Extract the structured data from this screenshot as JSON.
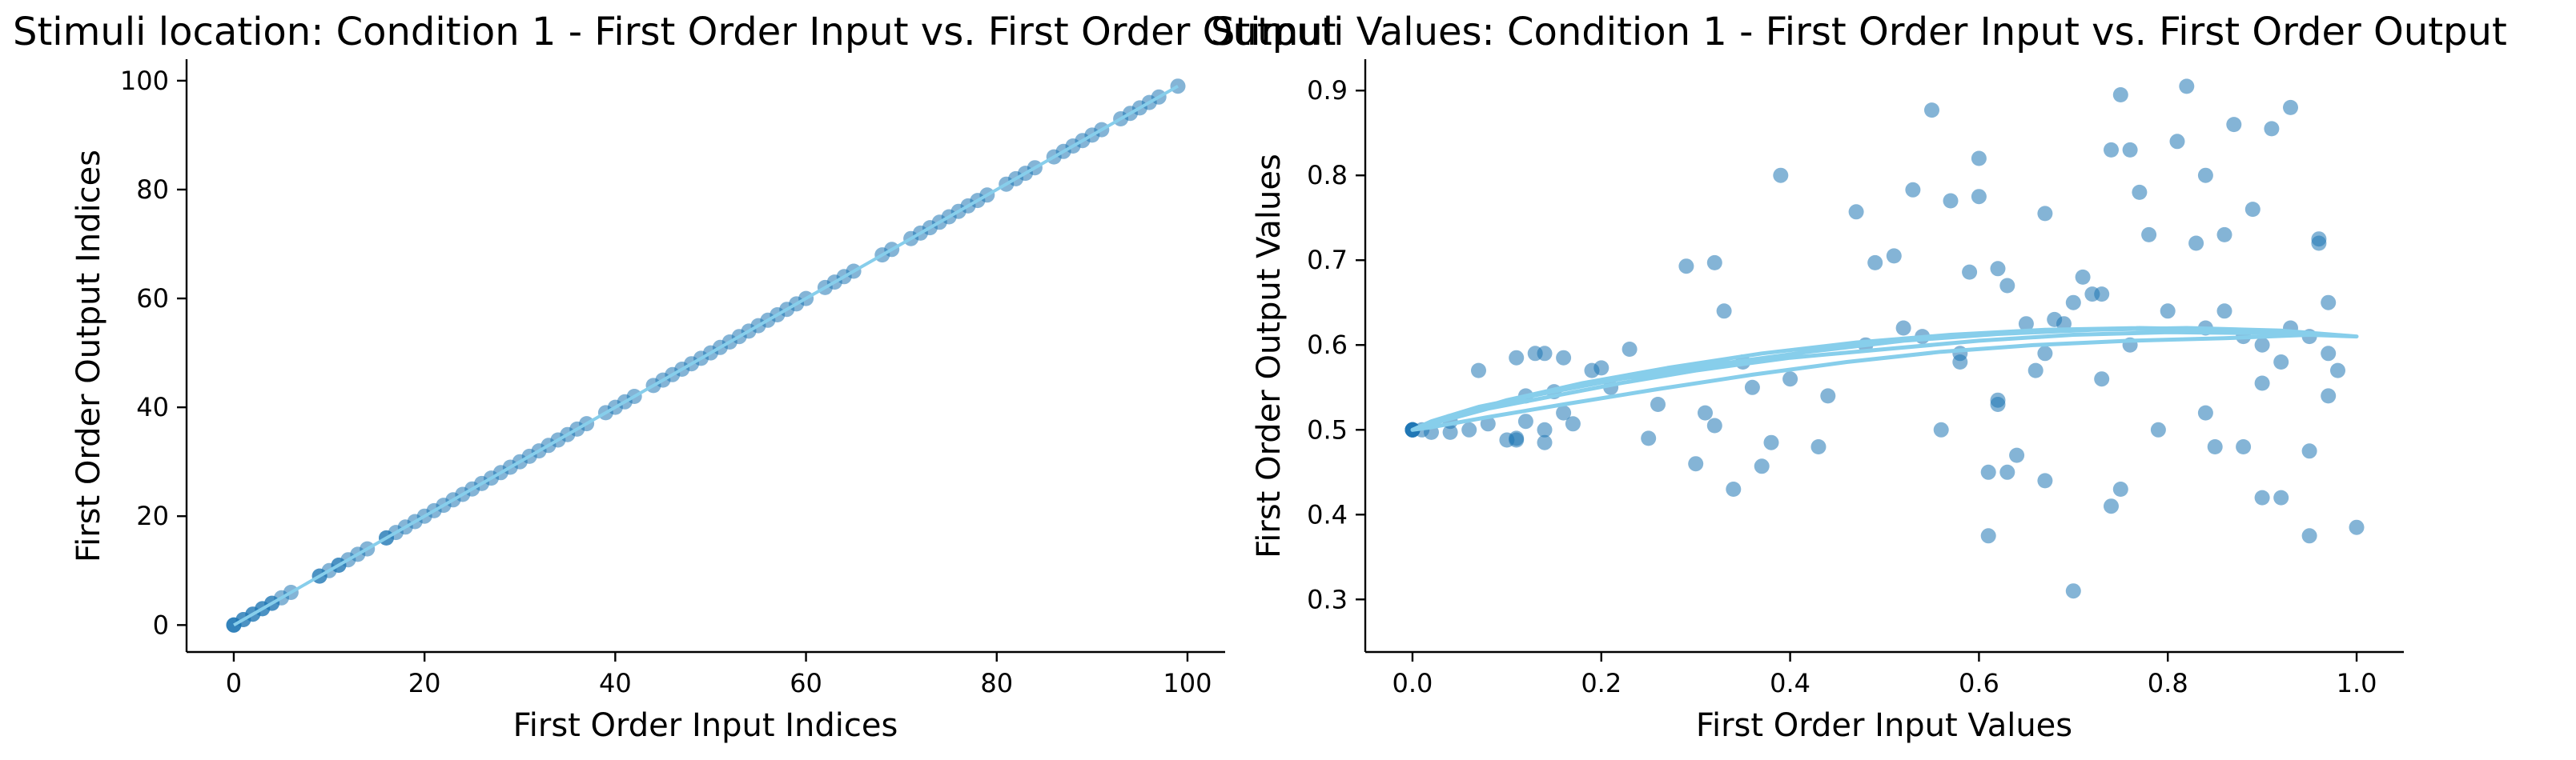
{
  "colors": {
    "point": "#1f77b4",
    "line": "#87ceeb"
  },
  "chart_data": [
    {
      "type": "scatter",
      "title": "Stimuli location: Condition 1 - First Order Input vs. First Order Output",
      "xlabel": "First Order Input Indices",
      "ylabel": "First Order Output Indices",
      "xlim": [
        -4.95,
        103.95
      ],
      "ylim": [
        -4.95,
        103.95
      ],
      "xticks": [
        0,
        20,
        40,
        60,
        80,
        100
      ],
      "yticks": [
        0,
        20,
        40,
        60,
        80,
        100
      ],
      "grid": false,
      "point_alpha": 0.55,
      "series": [
        {
          "kind": "scatter",
          "x": [
            0,
            0,
            0,
            1,
            1,
            2,
            2,
            3,
            3,
            4,
            4,
            5,
            6,
            9,
            9,
            10,
            11,
            11,
            12,
            13,
            14,
            16,
            16,
            17,
            18,
            19,
            20,
            21,
            22,
            23,
            24,
            25,
            26,
            27,
            28,
            29,
            30,
            31,
            32,
            33,
            34,
            35,
            36,
            37,
            39,
            40,
            41,
            42,
            44,
            45,
            46,
            47,
            48,
            49,
            50,
            51,
            52,
            53,
            54,
            55,
            56,
            57,
            58,
            59,
            60,
            62,
            63,
            64,
            65,
            68,
            69,
            71,
            72,
            73,
            74,
            75,
            76,
            77,
            78,
            79,
            81,
            82,
            83,
            84,
            86,
            87,
            88,
            89,
            90,
            91,
            93,
            94,
            95,
            96,
            97,
            99
          ],
          "y": [
            0,
            0,
            0,
            1,
            1,
            2,
            2,
            3,
            3,
            4,
            4,
            5,
            6,
            9,
            9,
            10,
            11,
            11,
            12,
            13,
            14,
            16,
            16,
            17,
            18,
            19,
            20,
            21,
            22,
            23,
            24,
            25,
            26,
            27,
            28,
            29,
            30,
            31,
            32,
            33,
            34,
            35,
            36,
            37,
            39,
            40,
            41,
            42,
            44,
            45,
            46,
            47,
            48,
            49,
            50,
            51,
            52,
            53,
            54,
            55,
            56,
            57,
            58,
            59,
            60,
            62,
            63,
            64,
            65,
            68,
            69,
            71,
            72,
            73,
            74,
            75,
            76,
            77,
            78,
            79,
            81,
            82,
            83,
            84,
            86,
            87,
            88,
            89,
            90,
            91,
            93,
            94,
            95,
            96,
            97,
            99
          ]
        },
        {
          "kind": "line",
          "x": [
            0,
            99
          ],
          "y": [
            0,
            99
          ]
        }
      ]
    },
    {
      "type": "scatter",
      "title": "Stimuli Values: Condition 1 - First Order Input vs. First Order Output",
      "xlabel": "First Order Input Values",
      "ylabel": "First Order Output Values",
      "xlim": [
        -0.05,
        1.05
      ],
      "ylim": [
        0.238,
        0.937
      ],
      "xticks": [
        0.0,
        0.2,
        0.4,
        0.6,
        0.8,
        1.0
      ],
      "yticks": [
        0.3,
        0.4,
        0.5,
        0.6,
        0.7,
        0.8,
        0.9
      ],
      "grid": false,
      "point_alpha": 0.55,
      "series": [
        {
          "kind": "scatter",
          "x": [
            0.0,
            0.0,
            0.0,
            0.0,
            0.0,
            0.0,
            0.01,
            0.02,
            0.04,
            0.04,
            0.07,
            0.08,
            0.1,
            0.11,
            0.11,
            0.12,
            0.13,
            0.14,
            0.14,
            0.15,
            0.16,
            0.17,
            0.19,
            0.2,
            0.21,
            0.23,
            0.25,
            0.29,
            0.3,
            0.31,
            0.32,
            0.32,
            0.34,
            0.36,
            0.37,
            0.38,
            0.39,
            0.43,
            0.47,
            0.49,
            0.51,
            0.53,
            0.55,
            0.56,
            0.57,
            0.59,
            0.6,
            0.6,
            0.61,
            0.61,
            0.62,
            0.62,
            0.63,
            0.64,
            0.65,
            0.67,
            0.67,
            0.69,
            0.7,
            0.71,
            0.72,
            0.73,
            0.74,
            0.74,
            0.75,
            0.75,
            0.76,
            0.77,
            0.78,
            0.79,
            0.81,
            0.82,
            0.83,
            0.84,
            0.85,
            0.86,
            0.87,
            0.88,
            0.89,
            0.9,
            0.91,
            0.92,
            0.92,
            0.93,
            0.95,
            0.95,
            0.96,
            0.96,
            0.97,
            0.98,
            1.0,
            0.11,
            0.12,
            0.14,
            0.16,
            0.26,
            0.33,
            0.35,
            0.4,
            0.44,
            0.48,
            0.52,
            0.58,
            0.66,
            0.68,
            0.7,
            0.73,
            0.76,
            0.8,
            0.84,
            0.88,
            0.9,
            0.93,
            0.97,
            0.63,
            0.54,
            0.58,
            0.86,
            0.9,
            0.95,
            0.97,
            0.62,
            0.67,
            0.84,
            0.06
          ],
          "y": [
            0.5,
            0.5,
            0.5,
            0.5,
            0.5,
            0.5,
            0.5,
            0.497,
            0.497,
            0.51,
            0.57,
            0.507,
            0.488,
            0.488,
            0.585,
            0.54,
            0.59,
            0.485,
            0.59,
            0.545,
            0.585,
            0.507,
            0.57,
            0.573,
            0.55,
            0.595,
            0.49,
            0.693,
            0.46,
            0.52,
            0.697,
            0.505,
            0.43,
            0.55,
            0.457,
            0.485,
            0.8,
            0.48,
            0.757,
            0.697,
            0.705,
            0.783,
            0.877,
            0.5,
            0.77,
            0.686,
            0.775,
            0.82,
            0.375,
            0.45,
            0.69,
            0.535,
            0.45,
            0.47,
            0.625,
            0.44,
            0.755,
            0.625,
            0.31,
            0.68,
            0.66,
            0.56,
            0.41,
            0.83,
            0.895,
            0.43,
            0.83,
            0.78,
            0.73,
            0.5,
            0.84,
            0.905,
            0.72,
            0.8,
            0.48,
            0.64,
            0.86,
            0.48,
            0.76,
            0.42,
            0.855,
            0.42,
            0.58,
            0.88,
            0.375,
            0.475,
            0.725,
            0.72,
            0.54,
            0.57,
            0.385,
            0.49,
            0.51,
            0.5,
            0.52,
            0.53,
            0.64,
            0.58,
            0.56,
            0.54,
            0.6,
            0.62,
            0.58,
            0.57,
            0.63,
            0.65,
            0.66,
            0.6,
            0.64,
            0.62,
            0.61,
            0.6,
            0.62,
            0.59,
            0.67,
            0.61,
            0.59,
            0.73,
            0.555,
            0.61,
            0.65,
            0.53,
            0.59,
            0.52,
            0.5
          ]
        },
        {
          "kind": "line",
          "x": [
            0.0,
            0.03,
            0.08,
            0.15,
            0.22,
            0.3,
            0.4,
            0.5,
            0.6,
            0.7,
            0.8,
            0.9,
            1.0,
            0.92,
            0.82,
            0.72,
            0.62,
            0.52,
            0.42,
            0.32,
            0.22,
            0.14,
            0.07,
            0.02,
            0.0,
            0.04,
            0.1,
            0.18,
            0.27,
            0.37,
            0.47,
            0.57,
            0.67,
            0.77,
            0.87,
            0.95,
            0.86,
            0.76,
            0.66,
            0.56,
            0.46,
            0.36,
            0.26,
            0.16,
            0.08,
            0.02,
            0.0
          ],
          "y": [
            0.5,
            0.51,
            0.525,
            0.54,
            0.555,
            0.57,
            0.585,
            0.595,
            0.605,
            0.612,
            0.615,
            0.614,
            0.61,
            0.617,
            0.62,
            0.618,
            0.613,
            0.605,
            0.592,
            0.577,
            0.56,
            0.543,
            0.527,
            0.51,
            0.5,
            0.515,
            0.535,
            0.555,
            0.573,
            0.59,
            0.603,
            0.612,
            0.618,
            0.62,
            0.618,
            0.612,
            0.608,
            0.605,
            0.6,
            0.592,
            0.58,
            0.565,
            0.548,
            0.53,
            0.515,
            0.503,
            0.5
          ]
        }
      ]
    }
  ]
}
